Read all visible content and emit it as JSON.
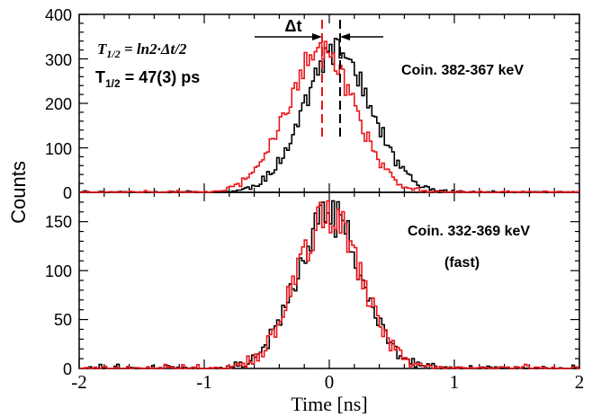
{
  "chart_data": [
    {
      "type": "line",
      "panel": "top",
      "ylim": [
        0,
        400
      ],
      "yticks": [
        "0",
        "100",
        "200",
        "300",
        "400"
      ],
      "xlim": [
        -2,
        2
      ],
      "annotation": "Coin. 382-367 keV",
      "formula_lhs": "T",
      "formula_sub": "1/2",
      "formula_rhs": " = ln2·Δt/2",
      "result_lhs": "T",
      "result_sub": "1/2",
      "result_rhs": " = 47(3) ps",
      "delta_label": "Δt",
      "series": [
        {
          "color": "#000000",
          "centroid": 0.065,
          "sigma": 0.27,
          "peak": 318,
          "seed": 11
        },
        {
          "color": "#e8161b",
          "centroid": -0.07,
          "sigma": 0.27,
          "peak": 318,
          "seed": 29
        }
      ]
    },
    {
      "type": "line",
      "panel": "bottom",
      "ylim": [
        0,
        180
      ],
      "yticks": [
        "0",
        "50",
        "100",
        "150"
      ],
      "xlim": [
        -2,
        2
      ],
      "annotation": "Coin.  332-369 keV",
      "annotation2": "(fast)",
      "series": [
        {
          "color": "#000000",
          "centroid": 0.0,
          "sigma": 0.255,
          "peak": 157,
          "seed": 5
        },
        {
          "color": "#e8161b",
          "centroid": 0.0,
          "sigma": 0.255,
          "peak": 157,
          "seed": 17
        }
      ]
    }
  ],
  "x_axis": {
    "label": "Time [ns]",
    "ticks": [
      "-2",
      "-1",
      "0",
      "1",
      "2"
    ]
  },
  "y_axis": {
    "label": "Counts"
  }
}
